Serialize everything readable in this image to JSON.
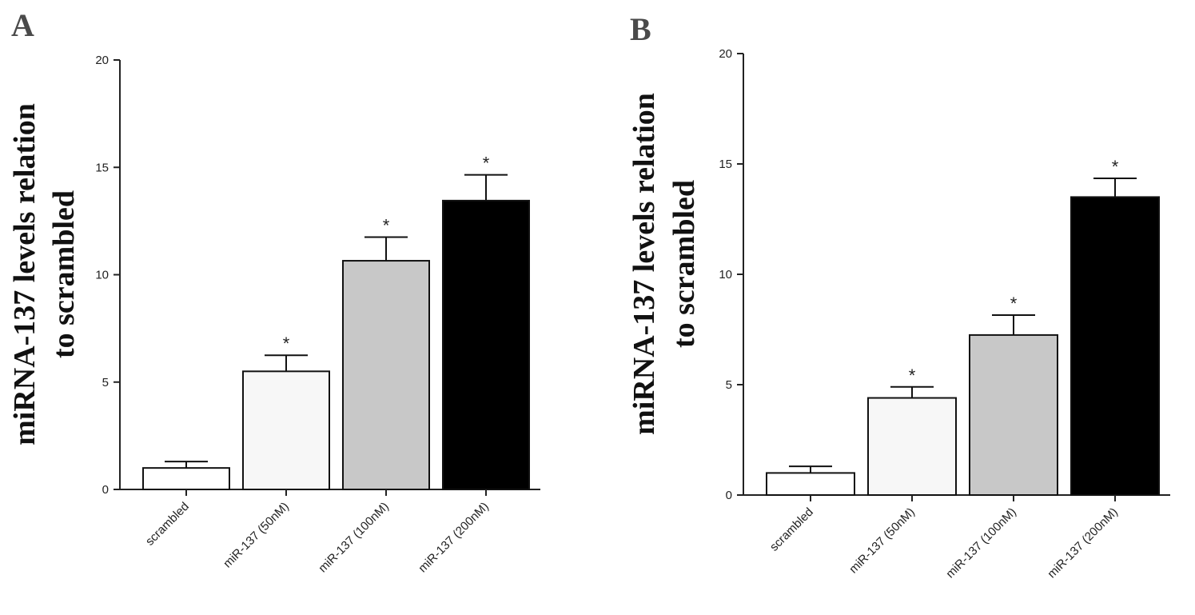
{
  "chart_data": [
    {
      "type": "bar",
      "panel": "A",
      "categories": [
        "scrambled",
        "miR-137 (50nM)",
        "miR-137 (100nM)",
        "miR-137 (200nM)"
      ],
      "values": [
        1.0,
        5.5,
        10.65,
        13.45
      ],
      "errors": [
        0.3,
        0.75,
        1.1,
        1.2
      ],
      "significance": [
        "",
        "*",
        "*",
        "*"
      ],
      "bar_colors": [
        "#ffffff",
        "#f7f7f7",
        "#c8c8c8",
        "#000000"
      ],
      "ylabel_lines": [
        "miRNA-137 levels relation",
        "to scrambled"
      ],
      "ylim": [
        0,
        20
      ],
      "yticks": [
        "0",
        "5",
        "10",
        "15",
        "20"
      ]
    },
    {
      "type": "bar",
      "panel": "B",
      "categories": [
        "scrambled",
        "miR-137 (50nM)",
        "miR-137 (100nM)",
        "miR-137 (200nM)"
      ],
      "values": [
        1.0,
        4.4,
        7.25,
        13.5
      ],
      "errors": [
        0.3,
        0.5,
        0.9,
        0.85
      ],
      "significance": [
        "",
        "*",
        "*",
        "*"
      ],
      "bar_colors": [
        "#ffffff",
        "#f7f7f7",
        "#c8c8c8",
        "#000000"
      ],
      "ylabel_lines": [
        "miRNA-137 levels relation",
        "to scrambled"
      ],
      "ylim": [
        0,
        20
      ],
      "yticks": [
        "0",
        "5",
        "10",
        "15",
        "20"
      ]
    }
  ]
}
